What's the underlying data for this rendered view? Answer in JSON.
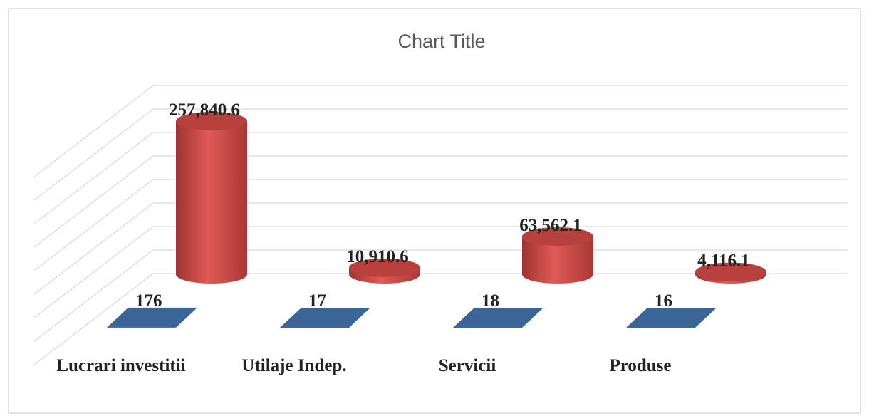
{
  "chart_data": {
    "type": "bar3d",
    "title": "Chart Title",
    "categories": [
      "Lucrari investitii",
      "Utilaje Indep.",
      "Servicii",
      "Produse"
    ],
    "series": [
      {
        "color": "#3b6597",
        "values": [
          176,
          17,
          18,
          16
        ]
      },
      {
        "color": "#c0504d",
        "values": [
          257840.6,
          10910.6,
          63562.1,
          4116.1
        ],
        "value_labels": [
          "257,840.6",
          "10,910.6",
          "63,562.1",
          "4,116.1"
        ]
      }
    ],
    "grid": true
  }
}
